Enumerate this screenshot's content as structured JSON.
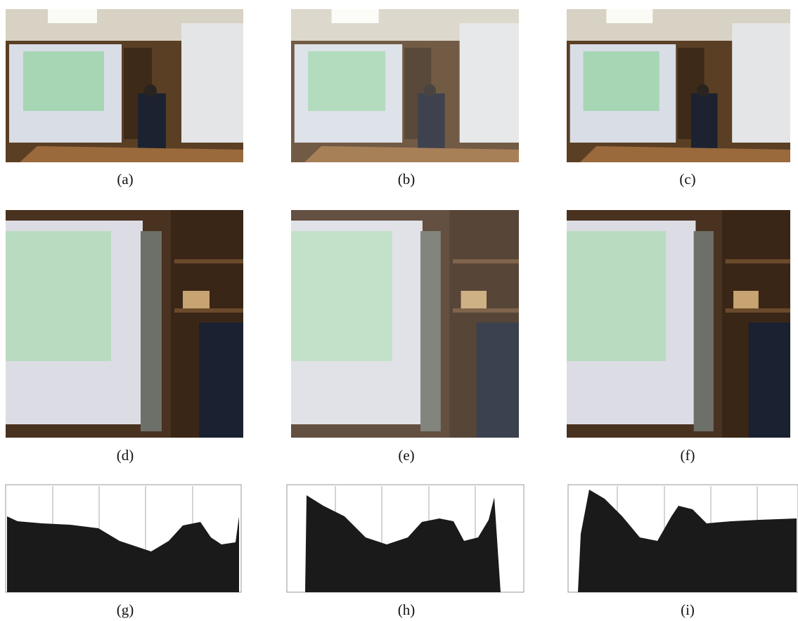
{
  "figure": {
    "panels": [
      {
        "label": "(a)"
      },
      {
        "label": "(b)"
      },
      {
        "label": "(c)"
      },
      {
        "label": "(d)"
      },
      {
        "label": "(e)"
      },
      {
        "label": "(f)"
      },
      {
        "label": "(g)"
      },
      {
        "label": "(h)"
      },
      {
        "label": "(i)"
      }
    ]
  }
}
